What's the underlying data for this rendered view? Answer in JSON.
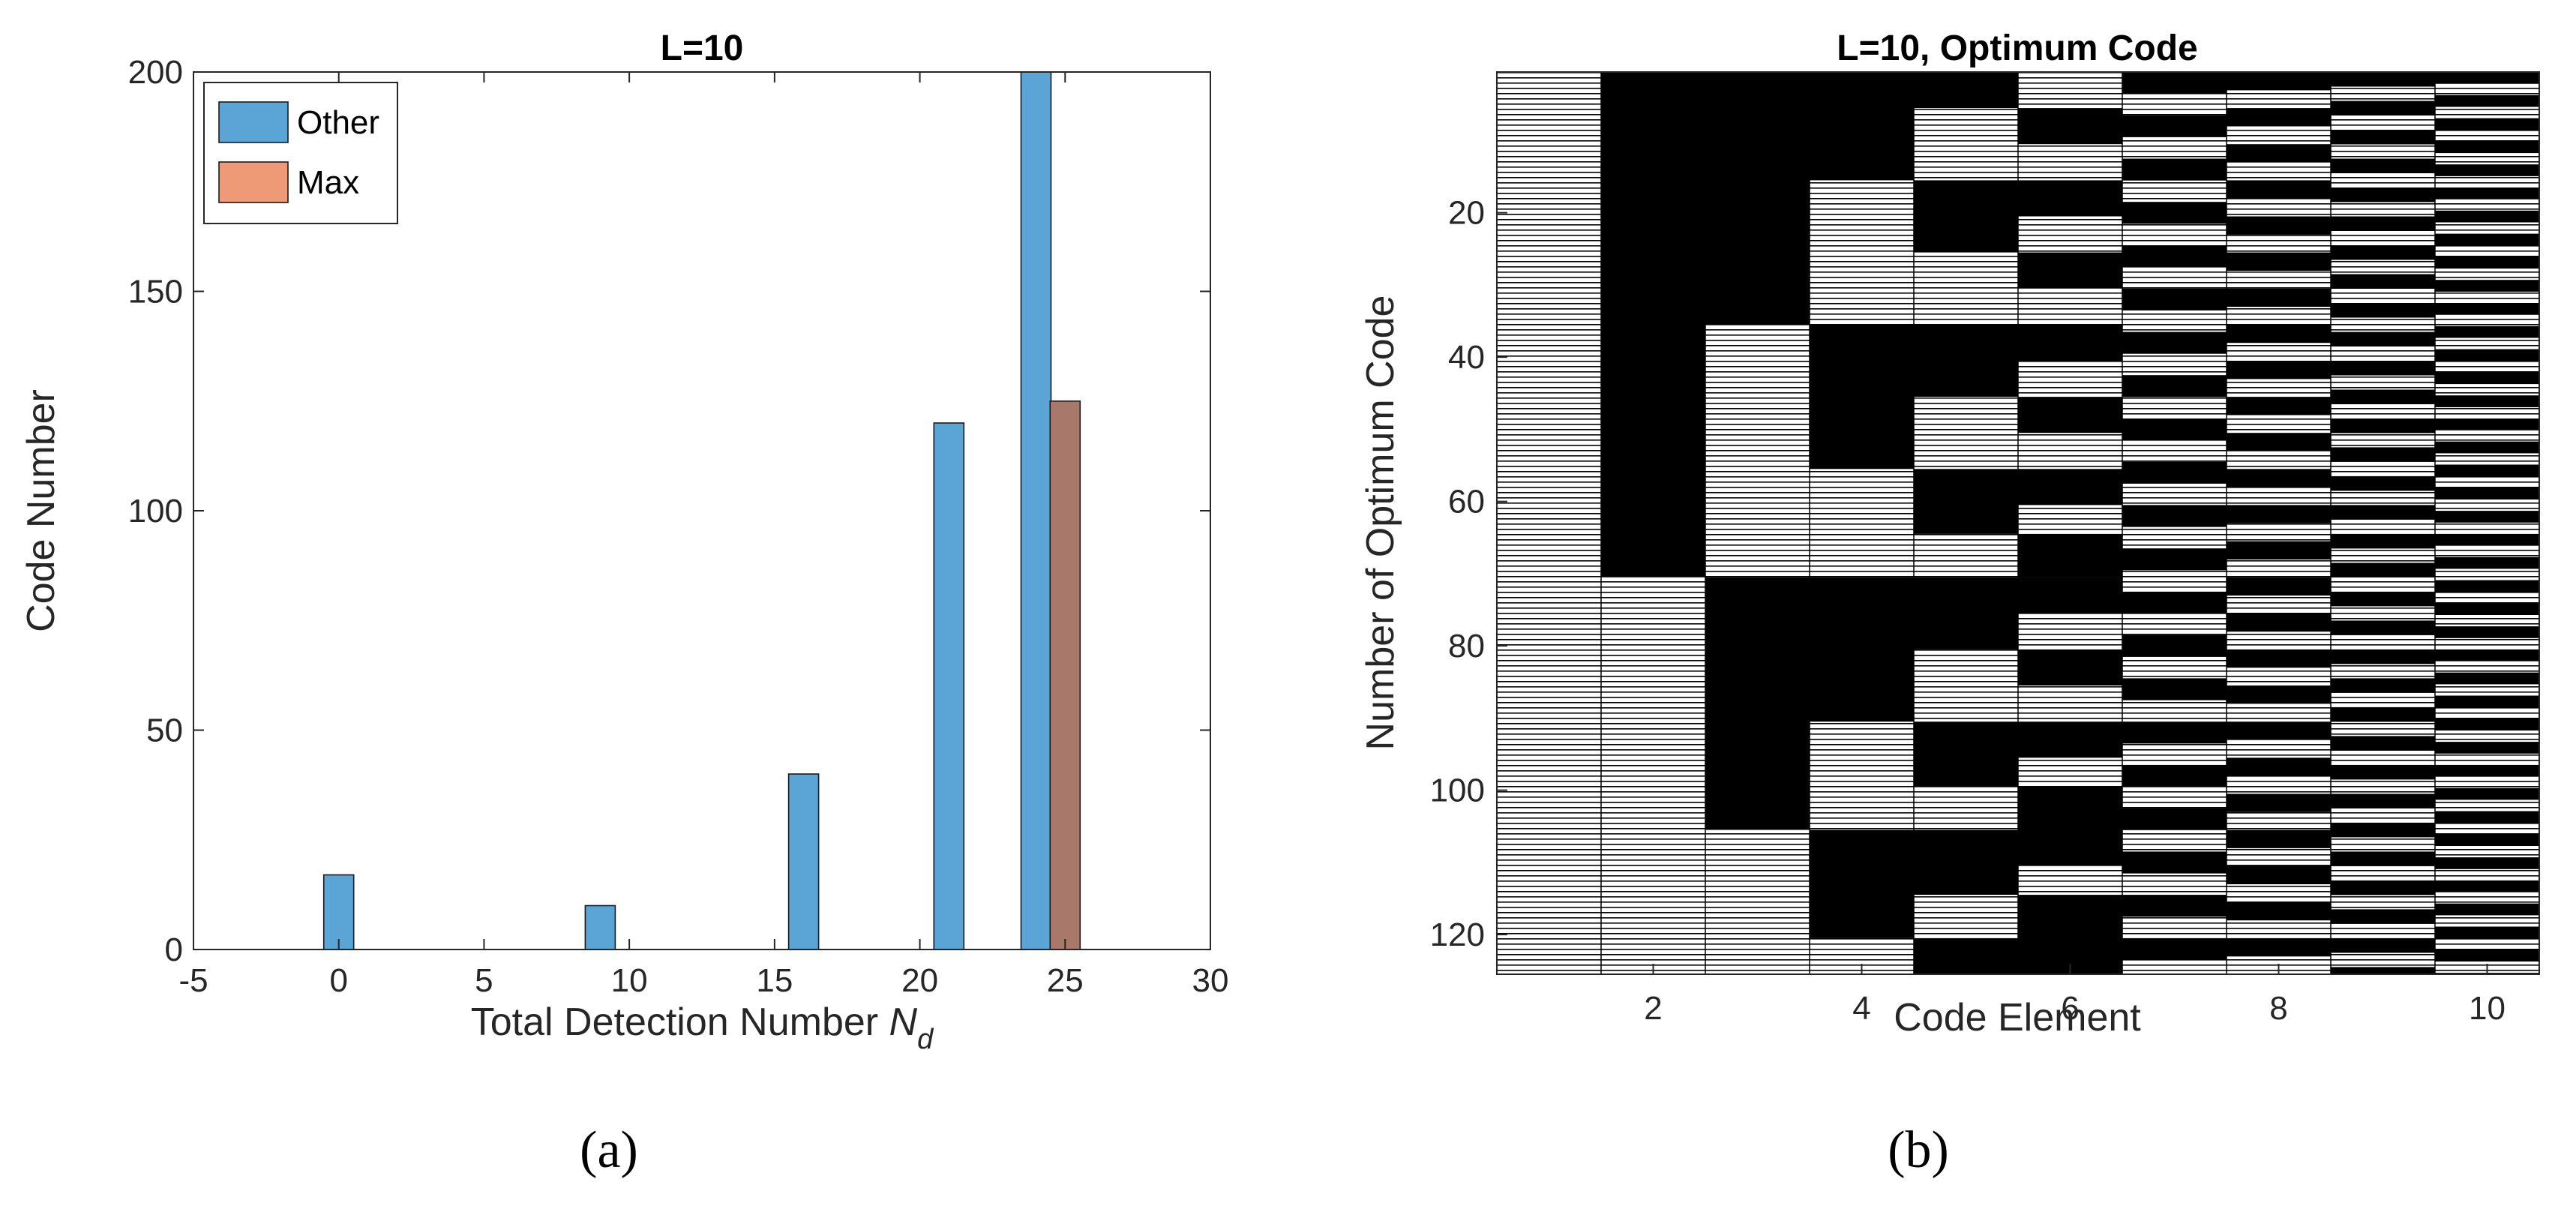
{
  "chart_data": [
    {
      "type": "bar",
      "title": "L=10",
      "xlabel": "Total Detection Number",
      "xlabel_symbol": "N",
      "xlabel_subscript": "d",
      "ylabel": "Code Number",
      "xlim": [
        -5,
        30
      ],
      "ylim": [
        0,
        200
      ],
      "xticks": [
        "-5",
        "0",
        "5",
        "10",
        "15",
        "20",
        "25",
        "30"
      ],
      "yticks": [
        "0",
        "50",
        "100",
        "150",
        "200"
      ],
      "legend_position": "top-left",
      "series": [
        {
          "name": "Other",
          "color": "#5aa4d6",
          "points": [
            {
              "x": 0,
              "y": 17
            },
            {
              "x": 9,
              "y": 10
            },
            {
              "x": 16,
              "y": 40
            },
            {
              "x": 21,
              "y": 120
            },
            {
              "x": 24,
              "y": 200
            }
          ]
        },
        {
          "name": "Max",
          "color": "#ef9a77",
          "overlap_color": "#a8786b",
          "points": [
            {
              "x": 25,
              "y": 125
            }
          ]
        }
      ],
      "caption": "(a)"
    },
    {
      "type": "heatmap",
      "title": "L=10, Optimum Code",
      "xlabel": "Code Element",
      "ylabel": "Number of Optimum Code",
      "xlim": [
        1,
        10
      ],
      "ylim": [
        1,
        125
      ],
      "xticks": [
        "2",
        "4",
        "6",
        "8",
        "10"
      ],
      "yticks": [
        "20",
        "40",
        "60",
        "80",
        "100",
        "120"
      ],
      "colors": {
        "zero": "#000000",
        "one": "#ffffff"
      },
      "row_count": 125,
      "columns": [
        {
          "element": 1,
          "segments": [
            [
              1,
              125,
              1
            ]
          ]
        },
        {
          "element": 2,
          "segments": [
            [
              1,
              70,
              0
            ],
            [
              71,
              125,
              1
            ]
          ]
        },
        {
          "element": 3,
          "segments": [
            [
              1,
              35,
              0
            ],
            [
              36,
              70,
              1
            ],
            [
              71,
              105,
              0
            ],
            [
              106,
              125,
              1
            ]
          ]
        },
        {
          "element": 4,
          "segments": [
            [
              1,
              15,
              0
            ],
            [
              16,
              35,
              1
            ],
            [
              36,
              55,
              0
            ],
            [
              56,
              70,
              1
            ],
            [
              71,
              90,
              0
            ],
            [
              91,
              105,
              1
            ],
            [
              106,
              120,
              0
            ],
            [
              121,
              125,
              1
            ]
          ]
        },
        {
          "element": 5,
          "segments": [
            [
              1,
              5,
              0
            ],
            [
              6,
              15,
              1
            ],
            [
              16,
              25,
              0
            ],
            [
              26,
              35,
              1
            ],
            [
              36,
              45,
              0
            ],
            [
              46,
              55,
              1
            ],
            [
              56,
              64,
              0
            ],
            [
              65,
              70,
              1
            ],
            [
              71,
              80,
              0
            ],
            [
              81,
              90,
              1
            ],
            [
              91,
              99,
              0
            ],
            [
              100,
              105,
              1
            ],
            [
              106,
              114,
              0
            ],
            [
              115,
              120,
              1
            ],
            [
              121,
              125,
              0
            ]
          ]
        },
        {
          "element": 6,
          "segments": [
            [
              1,
              5,
              1
            ],
            [
              6,
              10,
              0
            ],
            [
              11,
              15,
              1
            ],
            [
              16,
              20,
              0
            ],
            [
              21,
              25,
              1
            ],
            [
              26,
              30,
              0
            ],
            [
              31,
              35,
              1
            ],
            [
              36,
              40,
              0
            ],
            [
              41,
              45,
              1
            ],
            [
              46,
              50,
              0
            ],
            [
              51,
              55,
              1
            ],
            [
              56,
              60,
              0
            ],
            [
              61,
              64,
              1
            ],
            [
              65,
              70,
              0
            ],
            [
              71,
              75,
              0
            ],
            [
              76,
              80,
              1
            ],
            [
              81,
              85,
              0
            ],
            [
              86,
              90,
              1
            ],
            [
              91,
              95,
              0
            ],
            [
              96,
              99,
              1
            ],
            [
              100,
              105,
              0
            ],
            [
              106,
              110,
              0
            ],
            [
              111,
              114,
              1
            ],
            [
              115,
              120,
              0
            ],
            [
              121,
              125,
              0
            ]
          ]
        },
        {
          "element": 7,
          "pattern": "alternating",
          "period_rows": 3
        },
        {
          "element": 8,
          "pattern": "alternating",
          "period_rows": 2.5
        },
        {
          "element": 9,
          "pattern": "alternating",
          "period_rows": 2
        },
        {
          "element": 10,
          "pattern": "alternating",
          "period_rows": 1.6
        }
      ],
      "caption": "(b)"
    }
  ]
}
